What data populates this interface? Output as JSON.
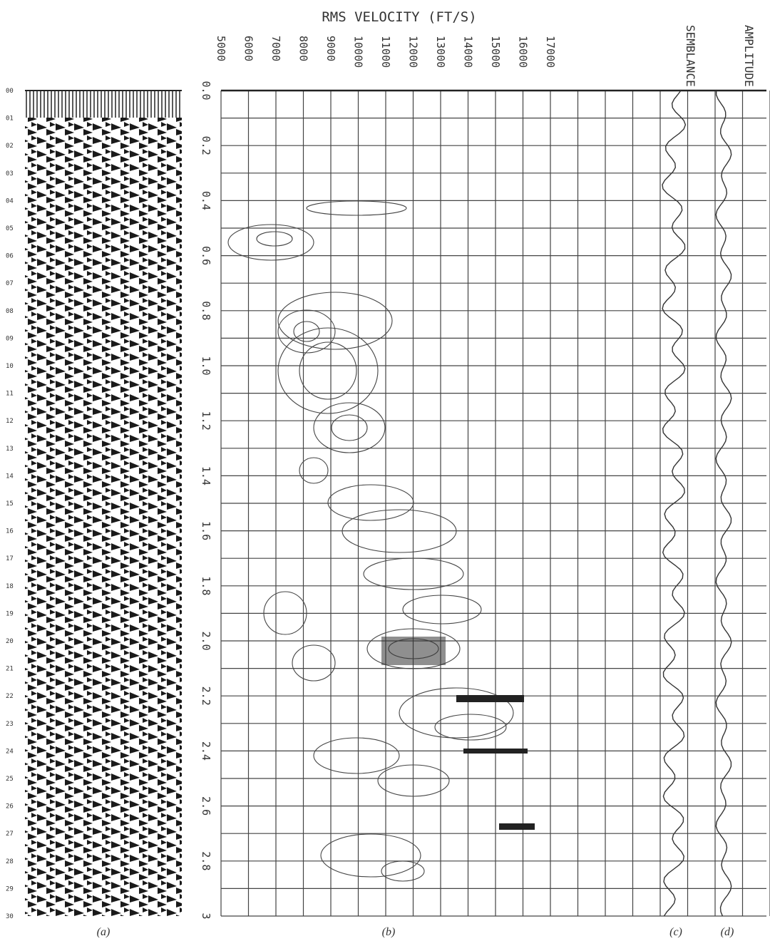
{
  "title": "RMS VELOCITY (FT/S)",
  "velocity_ticks": [
    "5000",
    "6000",
    "7000",
    "8000",
    "9000",
    "10000",
    "11000",
    "12000",
    "13000",
    "14000",
    "15000",
    "16000",
    "17000"
  ],
  "time_ticks": [
    "0.0",
    "0.2",
    "0.4",
    "0.6",
    "0.8",
    "1.0",
    "1.2",
    "1.4",
    "1.6",
    "1.8",
    "2.0",
    "2.2",
    "2.4",
    "2.6",
    "2.8",
    "3"
  ],
  "trace_labels": [
    "00",
    "01",
    "02",
    "03",
    "04",
    "05",
    "06",
    "07",
    "08",
    "09",
    "10",
    "11",
    "12",
    "13",
    "14",
    "15",
    "16",
    "17",
    "18",
    "19",
    "20",
    "21",
    "22",
    "23",
    "24",
    "25",
    "26",
    "27",
    "28",
    "29",
    "30"
  ],
  "semblance_label": "SEMBLANCE",
  "amplitude_label": "AMPLITUDE",
  "panel_labels": [
    "(a)",
    "(b)",
    "(c)",
    "(d)"
  ]
}
